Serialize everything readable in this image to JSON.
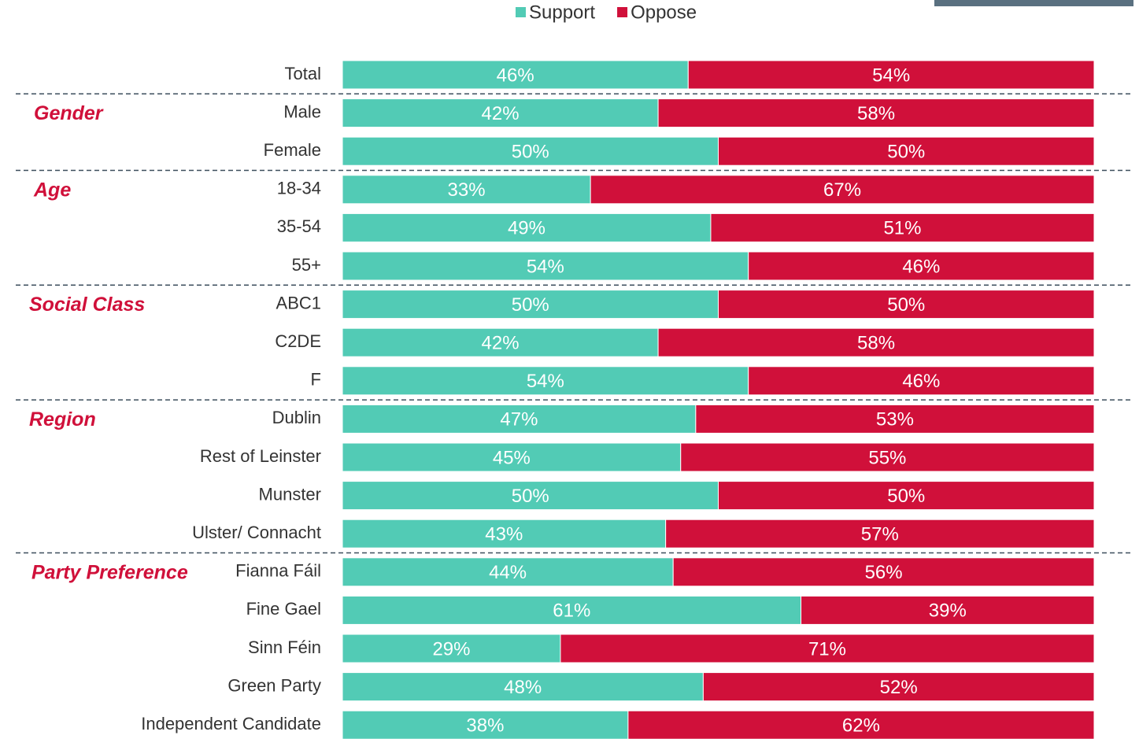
{
  "chart_data": {
    "type": "stacked-bar-horizontal",
    "categories": [
      "Total",
      "Male",
      "Female",
      "18-34",
      "35-54",
      "55+",
      "ABC1",
      "C2DE",
      "F",
      "Dublin",
      "Rest of Leinster",
      "Munster",
      "Ulster/ Connacht",
      "Fianna Fáil",
      "Fine Gael",
      "Sinn Féin",
      "Green Party",
      "Independent Candidate"
    ],
    "series": [
      {
        "name": "Support",
        "color": "#52cbb5",
        "values": [
          46,
          42,
          50,
          33,
          49,
          54,
          50,
          42,
          54,
          47,
          45,
          50,
          43,
          44,
          61,
          29,
          48,
          38
        ],
        "value_labels": [
          "46%",
          "42%",
          "50%",
          "33%",
          "49%",
          "54%",
          "50%",
          "42%",
          "54%",
          "47%",
          "45%",
          "50%",
          "43%",
          "44%",
          "61%",
          "29%",
          "48%",
          "38%"
        ]
      },
      {
        "name": "Oppose",
        "color": "#d0103a",
        "values": [
          54,
          58,
          50,
          67,
          51,
          46,
          50,
          58,
          46,
          53,
          55,
          50,
          57,
          56,
          39,
          71,
          52,
          62
        ],
        "value_labels": [
          "54%",
          "58%",
          "50%",
          "67%",
          "51%",
          "46%",
          "50%",
          "58%",
          "46%",
          "53%",
          "55%",
          "50%",
          "57%",
          "56%",
          "39%",
          "71%",
          "52%",
          "62%"
        ]
      }
    ],
    "groups": [
      {
        "name": "Gender",
        "categories": [
          "Male",
          "Female"
        ]
      },
      {
        "name": "Age",
        "categories": [
          "18-34",
          "35-54",
          "55+"
        ]
      },
      {
        "name": "Social Class",
        "categories": [
          "ABC1",
          "C2DE",
          "F"
        ]
      },
      {
        "name": "Region",
        "categories": [
          "Dublin",
          "Rest of Leinster",
          "Munster",
          "Ulster/ Connacht"
        ]
      },
      {
        "name": "Party Preference",
        "categories": [
          "Fianna Fáil",
          "Fine Gael",
          "Sinn Féin",
          "Green Party",
          "Independent Candidate"
        ]
      }
    ],
    "legend": "top"
  }
}
